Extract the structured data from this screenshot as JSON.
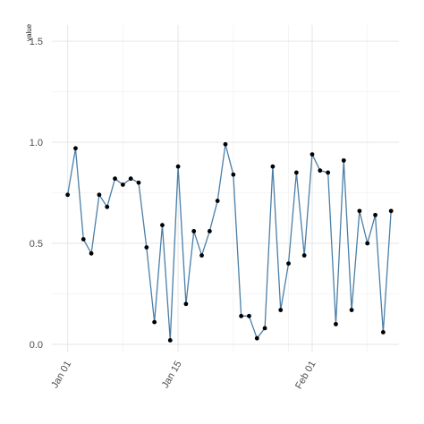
{
  "chart_data": {
    "type": "line",
    "title": "",
    "xlabel": "",
    "ylabel": "value",
    "ylim": [
      -0.04,
      1.58
    ],
    "y_ticks": [
      0.0,
      0.5,
      1.0,
      1.5
    ],
    "y_tick_labels": [
      "0.0",
      "0.5",
      "1.0",
      "1.5"
    ],
    "x_ticks": [
      "2024-01-01",
      "2024-01-15",
      "2024-02-01"
    ],
    "x_tick_labels": [
      "Jan 01",
      "Jan 15",
      "Feb 01"
    ],
    "x_minor_ticks": [
      "2024-01-08",
      "2024-01-22",
      "2024-01-29",
      "2024-02-08"
    ],
    "xlim": [
      "2023-12-30",
      "2024-02-12"
    ],
    "grid": true,
    "legend": "none",
    "colors": {
      "line": "#4a7fa8",
      "point": "#000000",
      "grid": "#e6e6e6"
    },
    "x": [
      "2024-01-01",
      "2024-01-02",
      "2024-01-03",
      "2024-01-04",
      "2024-01-05",
      "2024-01-06",
      "2024-01-07",
      "2024-01-08",
      "2024-01-09",
      "2024-01-10",
      "2024-01-11",
      "2024-01-12",
      "2024-01-13",
      "2024-01-14",
      "2024-01-15",
      "2024-01-16",
      "2024-01-17",
      "2024-01-18",
      "2024-01-19",
      "2024-01-20",
      "2024-01-21",
      "2024-01-22",
      "2024-01-23",
      "2024-01-24",
      "2024-01-25",
      "2024-01-26",
      "2024-01-27",
      "2024-01-28",
      "2024-01-29",
      "2024-01-30",
      "2024-01-31",
      "2024-02-01",
      "2024-02-02",
      "2024-02-03",
      "2024-02-04",
      "2024-02-05",
      "2024-02-06",
      "2024-02-07",
      "2024-02-08",
      "2024-02-09",
      "2024-02-10",
      "2024-02-11"
    ],
    "series": [
      {
        "values": [
          0.74,
          0.97,
          0.52,
          0.45,
          0.74,
          0.68,
          0.82,
          0.79,
          0.82,
          0.8,
          0.48,
          0.11,
          0.59,
          0.02,
          0.88,
          0.2,
          0.56,
          0.44,
          0.56,
          0.71,
          0.99,
          0.84,
          0.14,
          0.14,
          0.03,
          0.08,
          0.88,
          0.17,
          0.4,
          0.85,
          0.44,
          0.94,
          0.86,
          0.85,
          0.1,
          0.91,
          0.17,
          0.66,
          0.5,
          0.64,
          0.06,
          0.66
        ]
      }
    ]
  }
}
